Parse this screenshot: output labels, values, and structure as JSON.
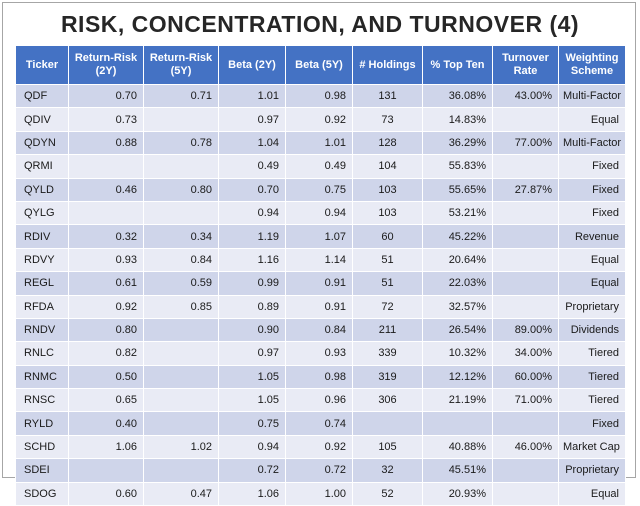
{
  "title": "RISK, CONCENTRATION, AND TURNOVER (4)",
  "headers": [
    "Ticker",
    "Return-Risk (2Y)",
    "Return-Risk (5Y)",
    "Beta (2Y)",
    "Beta (5Y)",
    "# Holdings",
    "% Top Ten",
    "Turnover Rate",
    "Weighting Scheme"
  ],
  "rows": [
    [
      "QDF",
      "0.70",
      "0.71",
      "1.01",
      "0.98",
      "131",
      "36.08%",
      "43.00%",
      "Multi-Factor"
    ],
    [
      "QDIV",
      "0.73",
      "",
      "0.97",
      "0.92",
      "73",
      "14.83%",
      "",
      "Equal"
    ],
    [
      "QDYN",
      "0.88",
      "0.78",
      "1.04",
      "1.01",
      "128",
      "36.29%",
      "77.00%",
      "Multi-Factor"
    ],
    [
      "QRMI",
      "",
      "",
      "0.49",
      "0.49",
      "104",
      "55.83%",
      "",
      "Fixed"
    ],
    [
      "QYLD",
      "0.46",
      "0.80",
      "0.70",
      "0.75",
      "103",
      "55.65%",
      "27.87%",
      "Fixed"
    ],
    [
      "QYLG",
      "",
      "",
      "0.94",
      "0.94",
      "103",
      "53.21%",
      "",
      "Fixed"
    ],
    [
      "RDIV",
      "0.32",
      "0.34",
      "1.19",
      "1.07",
      "60",
      "45.22%",
      "",
      "Revenue"
    ],
    [
      "RDVY",
      "0.93",
      "0.84",
      "1.16",
      "1.14",
      "51",
      "20.64%",
      "",
      "Equal"
    ],
    [
      "REGL",
      "0.61",
      "0.59",
      "0.99",
      "0.91",
      "51",
      "22.03%",
      "",
      "Equal"
    ],
    [
      "RFDA",
      "0.92",
      "0.85",
      "0.89",
      "0.91",
      "72",
      "32.57%",
      "",
      "Proprietary"
    ],
    [
      "RNDV",
      "0.80",
      "",
      "0.90",
      "0.84",
      "211",
      "26.54%",
      "89.00%",
      "Dividends"
    ],
    [
      "RNLC",
      "0.82",
      "",
      "0.97",
      "0.93",
      "339",
      "10.32%",
      "34.00%",
      "Tiered"
    ],
    [
      "RNMC",
      "0.50",
      "",
      "1.05",
      "0.98",
      "319",
      "12.12%",
      "60.00%",
      "Tiered"
    ],
    [
      "RNSC",
      "0.65",
      "",
      "1.05",
      "0.96",
      "306",
      "21.19%",
      "71.00%",
      "Tiered"
    ],
    [
      "RYLD",
      "0.40",
      "",
      "0.75",
      "0.74",
      "",
      "",
      "",
      "Fixed"
    ],
    [
      "SCHD",
      "1.06",
      "1.02",
      "0.94",
      "0.92",
      "105",
      "40.88%",
      "46.00%",
      "Market Cap"
    ],
    [
      "SDEI",
      "",
      "",
      "0.72",
      "0.72",
      "32",
      "45.51%",
      "",
      "Proprietary"
    ],
    [
      "SDOG",
      "0.60",
      "0.47",
      "1.06",
      "1.00",
      "52",
      "20.93%",
      "",
      "Equal"
    ]
  ]
}
